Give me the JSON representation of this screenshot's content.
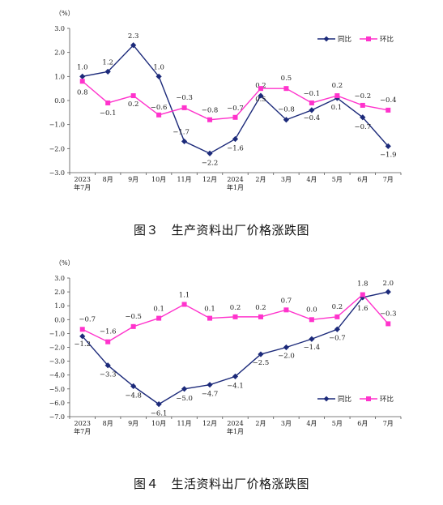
{
  "chart_data": [
    {
      "type": "line",
      "unit_label": "（%）",
      "caption": "图３　生产资料出厂价格涨跌图",
      "categories": [
        [
          "2023",
          "年7月"
        ],
        [
          "8月"
        ],
        [
          "9月"
        ],
        [
          "10月"
        ],
        [
          "11月"
        ],
        [
          "12月"
        ],
        [
          "2024",
          "年1月"
        ],
        [
          "2月"
        ],
        [
          "3月"
        ],
        [
          "4月"
        ],
        [
          "5月"
        ],
        [
          "6月"
        ],
        [
          "7月"
        ]
      ],
      "ylim": [
        -3.0,
        3.0
      ],
      "yticks": [
        "3.0",
        "2.0",
        "1.0",
        "0.0",
        "−1.0",
        "−2.0",
        "−3.0"
      ],
      "legend_position": "top-right",
      "series": [
        {
          "name": "同比",
          "color": "#1c2a7a",
          "marker": "diamond",
          "values": [
            1.0,
            1.2,
            2.3,
            1.0,
            -1.7,
            -2.2,
            -1.6,
            0.2,
            -0.8,
            -0.4,
            0.1,
            -0.7,
            -1.9
          ],
          "labels": [
            "1.0",
            "1.2",
            "2.3",
            "1.0",
            "−1.7",
            "−2.2",
            "−1.6",
            "0.2",
            "−0.8",
            "−0.4",
            "0.1",
            "−0.7",
            "−1.9"
          ]
        },
        {
          "name": "环比",
          "color": "#ff33cc",
          "marker": "square",
          "values": [
            0.8,
            -0.1,
            0.2,
            -0.6,
            -0.3,
            -0.8,
            -0.7,
            0.5,
            0.5,
            -0.1,
            0.2,
            -0.2,
            -0.4
          ],
          "labels": [
            "0.8",
            "−0.1",
            "0.2",
            "−0.6",
            "−0.3",
            "−0.8",
            "−0.7",
            "0.5",
            "0.5",
            "−0.1",
            "0.2",
            "−0.2",
            "−0.4"
          ]
        }
      ]
    },
    {
      "type": "line",
      "unit_label": "（%）",
      "caption": "图４　生活资料出厂价格涨跌图",
      "categories": [
        [
          "2023",
          "年7月"
        ],
        [
          "8月"
        ],
        [
          "9月"
        ],
        [
          "10月"
        ],
        [
          "11月"
        ],
        [
          "12月"
        ],
        [
          "2024",
          "年1月"
        ],
        [
          "2月"
        ],
        [
          "3月"
        ],
        [
          "4月"
        ],
        [
          "5月"
        ],
        [
          "6月"
        ],
        [
          "7月"
        ]
      ],
      "ylim": [
        -7.0,
        3.0
      ],
      "yticks": [
        "3.0",
        "2.0",
        "1.0",
        "0.0",
        "−1.0",
        "−2.0",
        "−3.0",
        "−4.0",
        "−5.0",
        "−6.0",
        "−7.0"
      ],
      "legend_position": "bottom-right",
      "series": [
        {
          "name": "同比",
          "color": "#1c2a7a",
          "marker": "diamond",
          "values": [
            -1.2,
            -3.3,
            -4.8,
            -6.1,
            -5.0,
            -4.7,
            -4.1,
            -2.5,
            -2.0,
            -1.4,
            -0.7,
            1.6,
            2.0
          ],
          "labels": [
            "−1.2",
            "−3.3",
            "−4.8",
            "−6.1",
            "−5.0",
            "−4.7",
            "−4.1",
            "−2.5",
            "−2.0",
            "−1.4",
            "−0.7",
            "1.6",
            "2.0"
          ]
        },
        {
          "name": "环比",
          "color": "#ff33cc",
          "marker": "square",
          "values": [
            -0.7,
            -1.6,
            -0.5,
            0.1,
            1.1,
            0.1,
            0.2,
            0.2,
            0.7,
            0.0,
            0.2,
            1.8,
            -0.3
          ],
          "labels": [
            "−0.7",
            "−1.6",
            "−0.5",
            "0.1",
            "1.1",
            "0.1",
            "0.2",
            "0.2",
            "0.7",
            "0.0",
            "0.2",
            "1.8",
            "−0.3"
          ]
        }
      ]
    }
  ]
}
